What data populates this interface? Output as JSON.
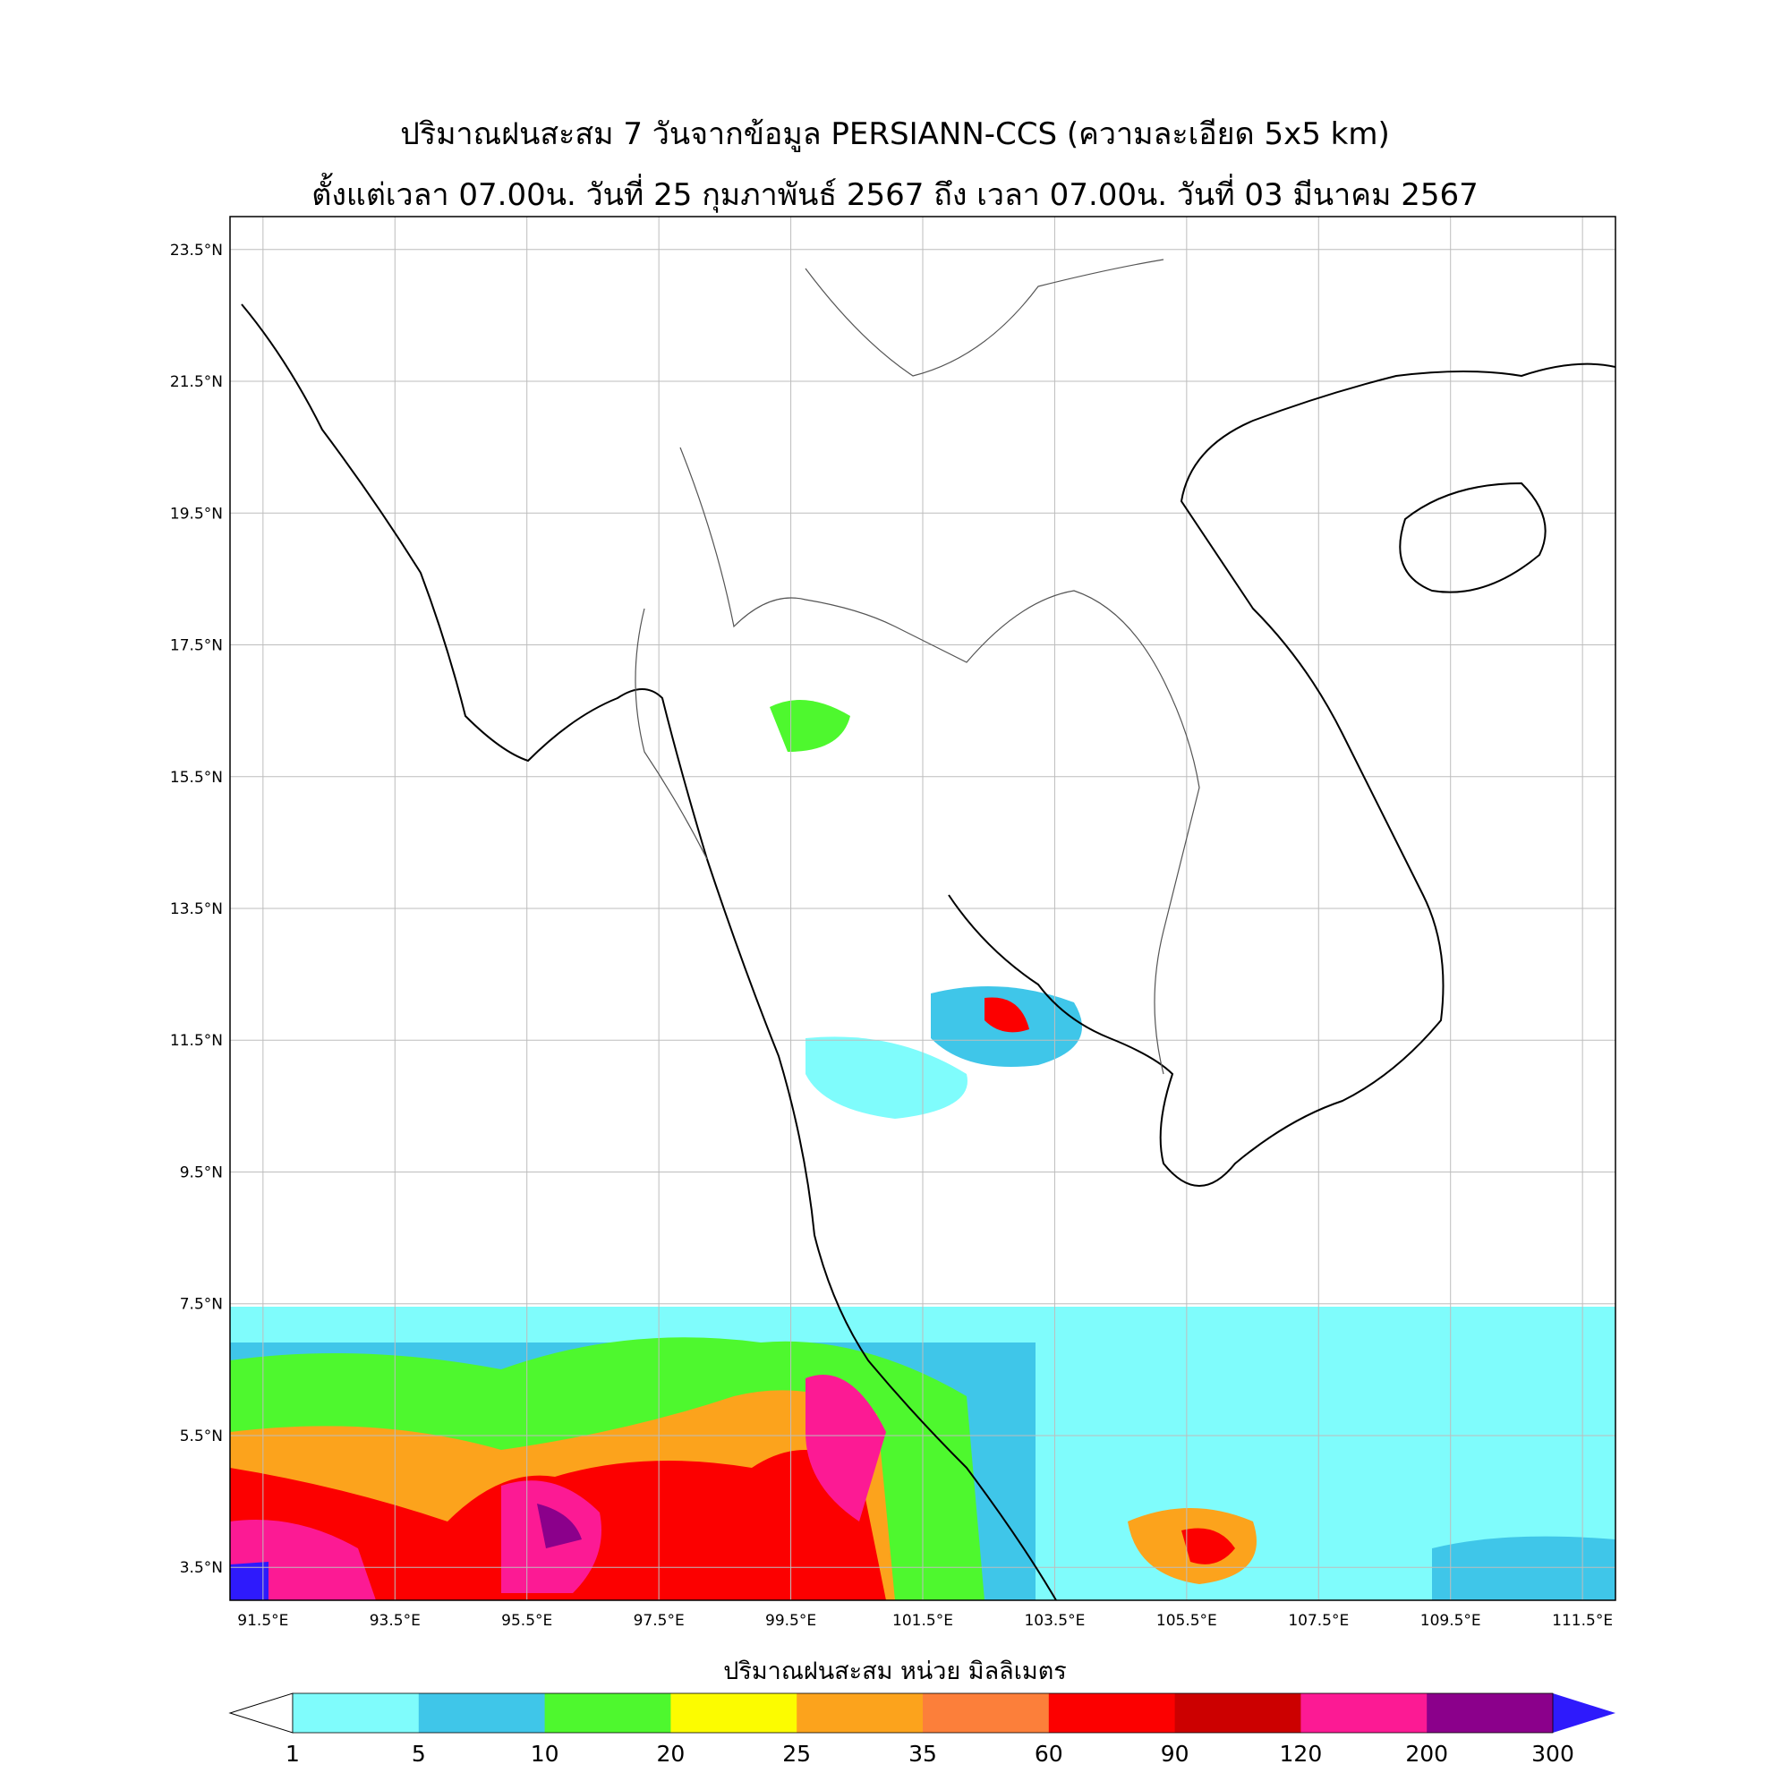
{
  "title_line1": "ปริมาณฝนสะสม 7 วันจากข้อมูล PERSIANN-CCS (ความละเอียด 5x5 km)",
  "title_line2": "ตั้งแต่เวลา 07.00น. วันที่ 25 กุมภาพันธ์ 2567 ถึง เวลา 07.00น. วันที่ 03 มีนาคม 2567",
  "map": {
    "lon_range": [
      91.0,
      112.0
    ],
    "lat_range": [
      3.0,
      24.0
    ],
    "lon_ticks": [
      "91.5°E",
      "93.5°E",
      "95.5°E",
      "97.5°E",
      "99.5°E",
      "101.5°E",
      "103.5°E",
      "105.5°E",
      "107.5°E",
      "109.5°E",
      "111.5°E"
    ],
    "lat_ticks": [
      "23.5°N",
      "21.5°N",
      "19.5°N",
      "17.5°N",
      "15.5°N",
      "13.5°N",
      "11.5°N",
      "9.5°N",
      "7.5°N",
      "5.5°N",
      "3.5°N"
    ],
    "lon_values": [
      91.5,
      93.5,
      95.5,
      97.5,
      99.5,
      101.5,
      103.5,
      105.5,
      107.5,
      109.5,
      111.5
    ],
    "lat_values": [
      23.5,
      21.5,
      19.5,
      17.5,
      15.5,
      13.5,
      11.5,
      9.5,
      7.5,
      5.5,
      3.5
    ],
    "grid": true
  },
  "colorbar": {
    "title": "ปริมาณฝนสะสม หน่วย มิลลิเมตร",
    "unit": "มิลลิเมตร",
    "levels": [
      "1",
      "5",
      "10",
      "20",
      "25",
      "35",
      "60",
      "90",
      "120",
      "200",
      "300"
    ],
    "colors": [
      "#7ffcfc",
      "#3fc6e9",
      "#4ef82e",
      "#fcfc00",
      "#fca31c",
      "#fc7f3a",
      "#fc0000",
      "#cc0000",
      "#fc1a94",
      "#8b008b"
    ],
    "under_color": "#ffffff",
    "over_color": "#2e1afc"
  }
}
